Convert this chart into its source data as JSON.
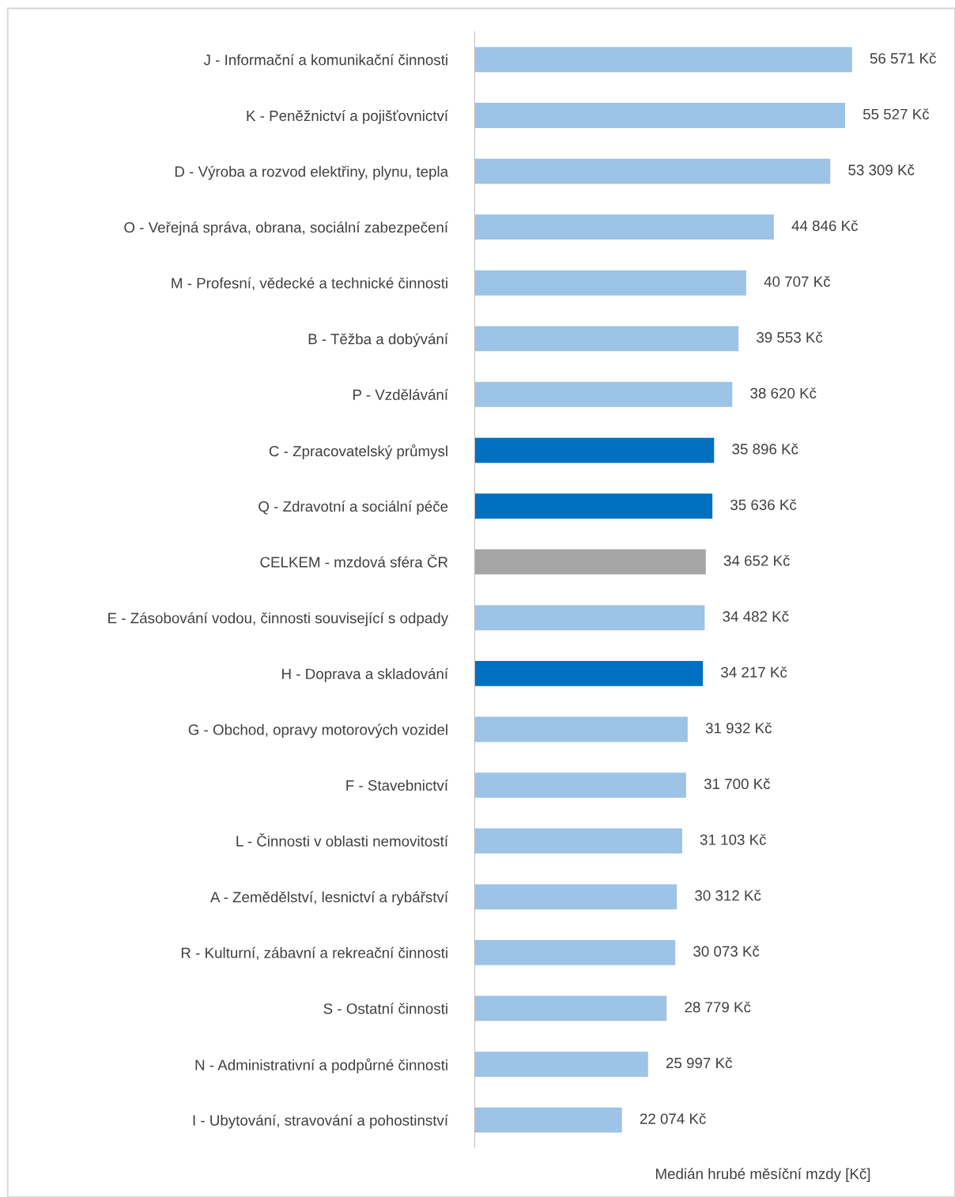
{
  "chart_data": {
    "type": "bar",
    "orientation": "horizontal",
    "xlabel": "Medián hrubé měsíční mzdy [Kč]",
    "categories": [
      "J - Informační a komunikační činnosti",
      "K - Peněžnictví a pojišťovnictví",
      "D - Výroba a rozvod elektřiny, plynu, tepla",
      "O - Veřejná správa, obrana, sociální zabezpečení",
      "M - Profesní, vědecké a technické činnosti",
      "B - Těžba a dobývání",
      "P - Vzdělávání",
      "C - Zpracovatelský průmysl",
      "Q - Zdravotní a sociální péče",
      "CELKEM - mzdová sféra ČR",
      "E - Zásobování vodou, činnosti související s odpady",
      "H - Doprava a skladování",
      "G - Obchod, opravy motorových vozidel",
      "F - Stavebnictví",
      "L - Činnosti v oblasti nemovitostí",
      "A - Zemědělství, lesnictví a rybářství",
      "R - Kulturní, zábavní a rekreační činnosti",
      "S - Ostatní činnosti",
      "N - Administrativní a podpůrné činnosti",
      "I - Ubytování, stravování a pohostinství"
    ],
    "values": [
      56571,
      55527,
      53309,
      44846,
      40707,
      39553,
      38620,
      35896,
      35636,
      34652,
      34482,
      34217,
      31932,
      31700,
      31103,
      30312,
      30073,
      28779,
      25997,
      22074
    ],
    "value_labels": [
      "56 571 Kč",
      "55 527 Kč",
      "53 309 Kč",
      "44 846 Kč",
      "40 707 Kč",
      "39 553 Kč",
      "38 620 Kč",
      "35 896 Kč",
      "35 636 Kč",
      "34 652 Kč",
      "34 482 Kč",
      "34 217 Kč",
      "31 932 Kč",
      "31 700 Kč",
      "31 103 Kč",
      "30 312 Kč",
      "30 073 Kč",
      "28 779 Kč",
      "25 997 Kč",
      "22 074 Kč"
    ],
    "colors": [
      "#9dc3e6",
      "#9dc3e6",
      "#9dc3e6",
      "#9dc3e6",
      "#9dc3e6",
      "#9dc3e6",
      "#9dc3e6",
      "#0070c0",
      "#0070c0",
      "#a5a5a5",
      "#9dc3e6",
      "#0070c0",
      "#9dc3e6",
      "#9dc3e6",
      "#9dc3e6",
      "#9dc3e6",
      "#9dc3e6",
      "#9dc3e6",
      "#9dc3e6",
      "#9dc3e6"
    ],
    "xlim": [
      0,
      72000
    ],
    "tick_labels": "y",
    "grid": false,
    "legend": false
  }
}
